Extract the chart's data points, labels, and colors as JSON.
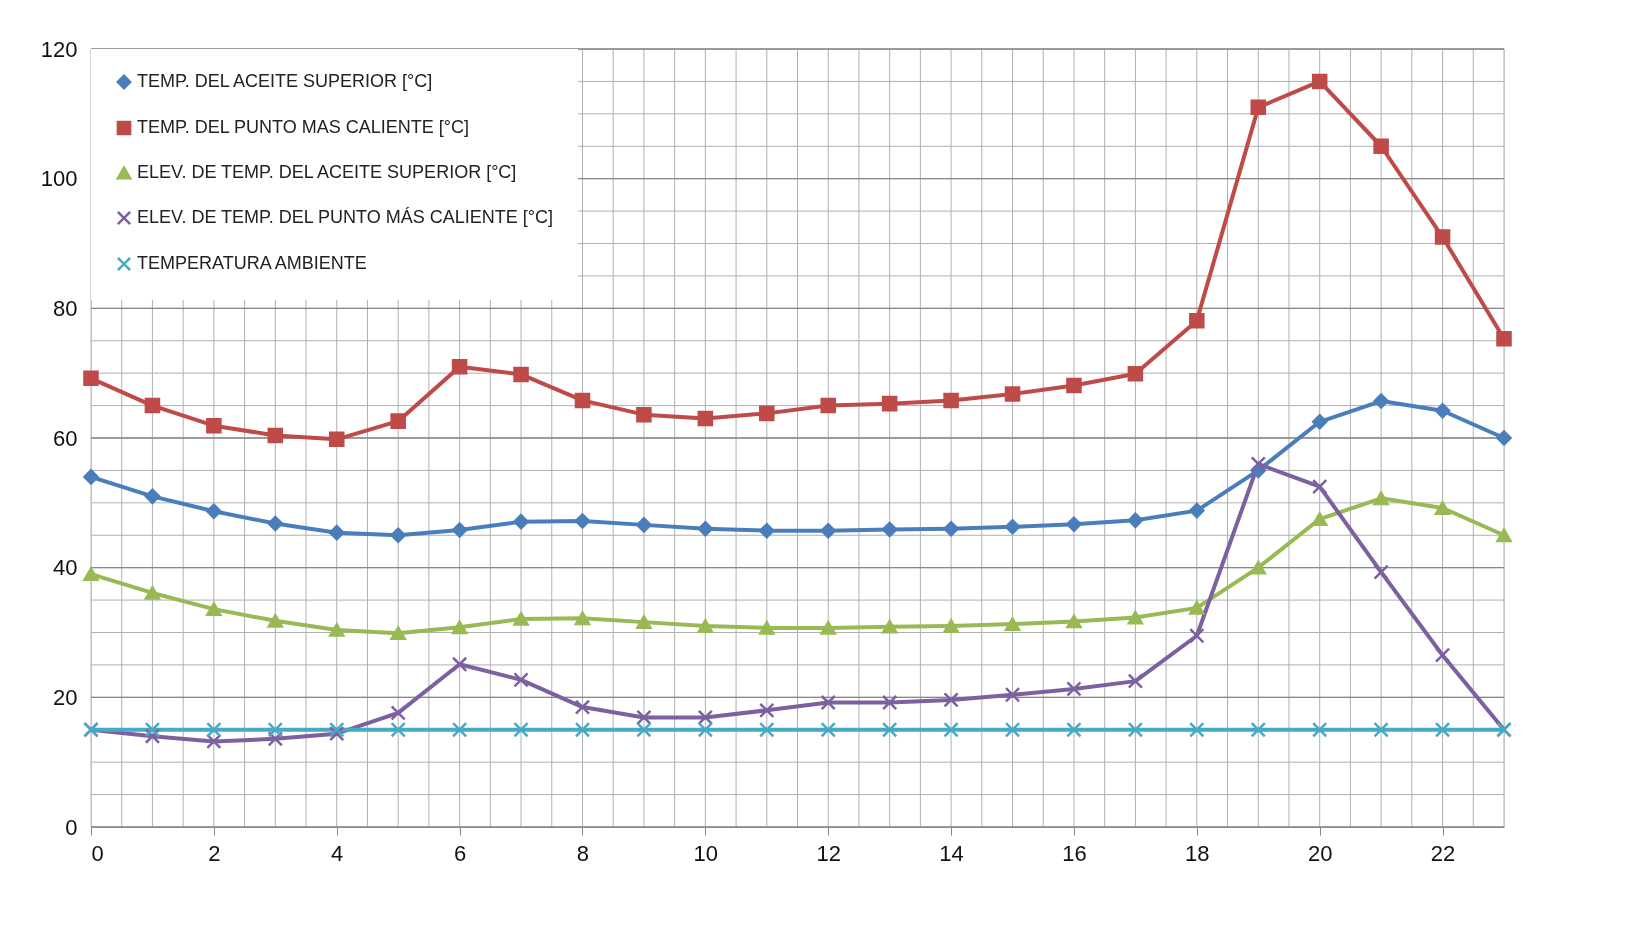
{
  "chart_data": {
    "type": "line",
    "x": [
      0,
      1,
      2,
      3,
      4,
      5,
      6,
      7,
      8,
      9,
      10,
      11,
      12,
      13,
      14,
      15,
      16,
      17,
      18,
      19,
      20,
      21,
      22,
      23
    ],
    "xlim": [
      0,
      23
    ],
    "xticks": [
      0,
      2,
      4,
      6,
      8,
      10,
      12,
      14,
      16,
      18,
      20,
      22
    ],
    "ylim": [
      0,
      120
    ],
    "yticks": [
      0,
      20,
      40,
      60,
      80,
      100,
      120
    ],
    "grid": true,
    "legend": "top left",
    "line_style": "solid",
    "series": [
      {
        "name": "TEMP. DEL ACEITE SUPERIOR [°C]",
        "color": "#4a7ebb",
        "marker": "diamond",
        "values": [
          54,
          51,
          48.7,
          46.8,
          45.4,
          45,
          45.8,
          47.1,
          47.2,
          46.6,
          46,
          45.7,
          45.7,
          45.9,
          46,
          46.3,
          46.7,
          47.3,
          48.8,
          55,
          62.5,
          65.7,
          64.2,
          60
        ]
      },
      {
        "name": "TEMP. DEL PUNTO MAS CALIENTE [°C]",
        "color": "#be4b48",
        "marker": "square",
        "values": [
          69.2,
          65,
          61.9,
          60.4,
          59.8,
          62.6,
          71,
          69.8,
          65.8,
          63.6,
          63,
          63.8,
          65,
          65.3,
          65.8,
          66.8,
          68.1,
          69.9,
          78.1,
          111,
          115,
          105,
          91,
          75.3
        ]
      },
      {
        "name": "ELEV. DE TEMP. DEL ACEITE SUPERIOR [°C]",
        "color": "#98b954",
        "marker": "triangle",
        "values": [
          39,
          36.1,
          33.6,
          31.8,
          30.4,
          29.9,
          30.8,
          32.1,
          32.2,
          31.6,
          31,
          30.7,
          30.7,
          30.9,
          31,
          31.3,
          31.7,
          32.3,
          33.8,
          40,
          47.5,
          50.7,
          49.2,
          45
        ]
      },
      {
        "name": "ELEV. DE TEMP. DEL PUNTO MÁS CALIENTE [°C]",
        "color": "#7d60a0",
        "marker": "cross",
        "values": [
          15,
          14,
          13.2,
          13.6,
          14.4,
          17.6,
          25.1,
          22.7,
          18.5,
          16.9,
          16.9,
          18,
          19.2,
          19.2,
          19.6,
          20.4,
          21.3,
          22.5,
          29.5,
          56,
          52.5,
          39.3,
          26.5,
          15
        ]
      },
      {
        "name": "TEMPERATURA AMBIENTE",
        "color": "#46aac5",
        "marker": "cross",
        "values": [
          15,
          15,
          15,
          15,
          15,
          15,
          15,
          15,
          15,
          15,
          15,
          15,
          15,
          15,
          15,
          15,
          15,
          15,
          15,
          15,
          15,
          15,
          15,
          15
        ]
      }
    ]
  }
}
